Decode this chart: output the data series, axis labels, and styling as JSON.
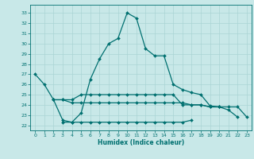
{
  "title": "",
  "xlabel": "Humidex (Indice chaleur)",
  "background_color": "#c8e8e8",
  "line_color": "#007070",
  "xlim": [
    -0.5,
    23.5
  ],
  "ylim": [
    21.5,
    33.8
  ],
  "yticks": [
    22,
    23,
    24,
    25,
    26,
    27,
    28,
    29,
    30,
    31,
    32,
    33
  ],
  "xticks": [
    0,
    1,
    2,
    3,
    4,
    5,
    6,
    7,
    8,
    9,
    10,
    11,
    12,
    13,
    14,
    15,
    16,
    17,
    18,
    19,
    20,
    21,
    22,
    23
  ],
  "lines": [
    {
      "x": [
        0,
        1,
        2,
        3,
        4,
        5,
        6,
        7,
        8,
        9,
        10,
        11,
        12,
        13,
        14,
        15,
        16,
        17,
        18,
        19,
        20,
        21,
        22
      ],
      "y": [
        27,
        26,
        24.5,
        22.5,
        22.3,
        23.2,
        26.5,
        28.5,
        30,
        30.5,
        33,
        32.5,
        29.5,
        28.8,
        28.8,
        26,
        25.5,
        25.2,
        25,
        23.9,
        23.8,
        23.5,
        22.8
      ]
    },
    {
      "x": [
        2,
        3,
        4,
        5,
        6,
        7,
        8,
        9,
        10,
        11,
        12,
        13,
        14,
        15,
        16,
        17,
        18,
        19,
        20
      ],
      "y": [
        24.5,
        24.5,
        24.5,
        25,
        25,
        25,
        25,
        25,
        25,
        25,
        25,
        25,
        25,
        25,
        24,
        24,
        24,
        23.8,
        23.8
      ]
    },
    {
      "x": [
        2,
        3,
        4,
        5,
        6,
        7,
        8,
        9,
        10,
        11,
        12,
        13,
        14,
        15,
        16,
        17,
        18,
        19,
        20,
        21,
        22,
        23
      ],
      "y": [
        24.5,
        24.5,
        24.2,
        24.2,
        24.2,
        24.2,
        24.2,
        24.2,
        24.2,
        24.2,
        24.2,
        24.2,
        24.2,
        24.2,
        24.2,
        24.0,
        24.0,
        23.8,
        23.8,
        23.8,
        23.8,
        22.8
      ]
    },
    {
      "x": [
        3,
        4,
        5,
        6,
        7,
        8,
        9,
        10,
        11,
        12,
        13,
        14,
        15,
        16,
        17
      ],
      "y": [
        22.3,
        22.3,
        22.3,
        22.3,
        22.3,
        22.3,
        22.3,
        22.3,
        22.3,
        22.3,
        22.3,
        22.3,
        22.3,
        22.3,
        22.5
      ]
    }
  ],
  "grid_color": "#aad4d4",
  "markersize": 2.0,
  "linewidth": 0.9
}
